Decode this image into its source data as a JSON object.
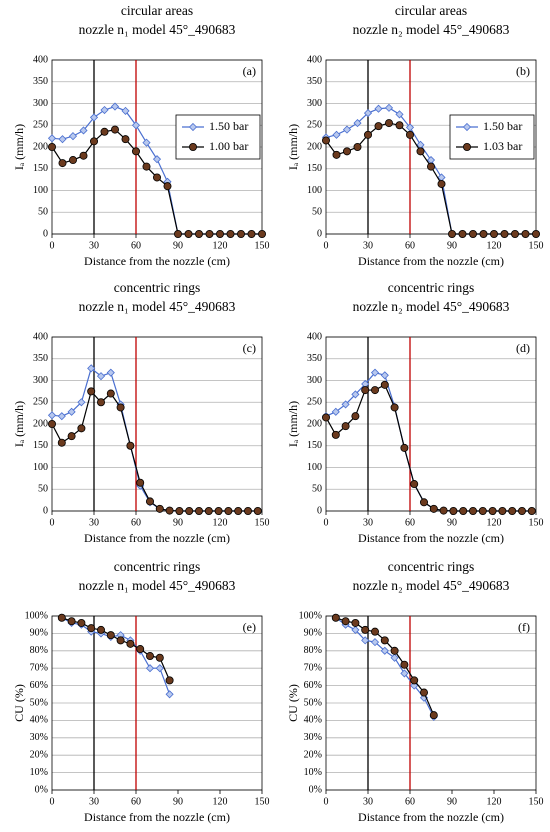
{
  "chart_data": [
    {
      "type": "line",
      "title": "circular areas",
      "subtitle": "nozzle n₁ model 45°_490683",
      "panel_label": "(a)",
      "xlabel": "Distance from the nozzle (cm)",
      "ylabel": "Iₐ (mm/h)",
      "x": [
        0,
        7.5,
        15,
        22.5,
        30,
        37.5,
        45,
        52.5,
        60,
        67.5,
        75,
        82.5,
        90,
        97.5,
        105,
        112.5,
        120,
        127.5,
        135,
        142.5,
        150
      ],
      "series": [
        {
          "name": "1.50 bar",
          "color": "#4a6fd0",
          "marker": "diamond",
          "marker_color": "#b8c8ee",
          "values": [
            220,
            218,
            225,
            238,
            268,
            285,
            293,
            283,
            250,
            210,
            172,
            120,
            0,
            0,
            0,
            0,
            0,
            0,
            0,
            0,
            0
          ]
        },
        {
          "name": "1.00 bar",
          "color": "#000000",
          "marker": "circle",
          "marker_color": "#6b3a1e",
          "values": [
            200,
            163,
            170,
            180,
            213,
            235,
            240,
            218,
            190,
            155,
            130,
            110,
            0,
            0,
            0,
            0,
            0,
            0,
            0,
            0,
            0
          ]
        }
      ],
      "xlim": [
        0,
        150
      ],
      "xticks": [
        0,
        30,
        60,
        90,
        120,
        150
      ],
      "ylim": [
        0,
        400
      ],
      "yticks": [
        0,
        50,
        100,
        150,
        200,
        250,
        300,
        350,
        400
      ],
      "grid": true,
      "legend": "center right",
      "vlines": [
        {
          "value": 30,
          "color": "#000000"
        },
        {
          "value": 60,
          "color": "#c00000"
        }
      ]
    },
    {
      "type": "line",
      "title": "circular areas",
      "subtitle": "nozzle n₂ model 45°_490683",
      "panel_label": "(b)",
      "xlabel": "Distance from the nozzle (cm)",
      "ylabel": "Iₐ (mm/h)",
      "x": [
        0,
        7.5,
        15,
        22.5,
        30,
        37.5,
        45,
        52.5,
        60,
        67.5,
        75,
        82.5,
        90,
        97.5,
        105,
        112.5,
        120,
        127.5,
        135,
        142.5,
        150
      ],
      "series": [
        {
          "name": "1.50 bar",
          "color": "#4a6fd0",
          "marker": "diamond",
          "marker_color": "#b8c8ee",
          "values": [
            222,
            228,
            240,
            255,
            278,
            288,
            290,
            275,
            245,
            205,
            170,
            130,
            0,
            0,
            0,
            0,
            0,
            0,
            0,
            0,
            0
          ]
        },
        {
          "name": "1.03 bar",
          "color": "#000000",
          "marker": "circle",
          "marker_color": "#6b3a1e",
          "values": [
            215,
            182,
            190,
            200,
            228,
            248,
            255,
            250,
            228,
            190,
            155,
            115,
            0,
            0,
            0,
            0,
            0,
            0,
            0,
            0,
            0
          ]
        }
      ],
      "xlim": [
        0,
        150
      ],
      "xticks": [
        0,
        30,
        60,
        90,
        120,
        150
      ],
      "ylim": [
        0,
        400
      ],
      "yticks": [
        0,
        50,
        100,
        150,
        200,
        250,
        300,
        350,
        400
      ],
      "grid": true,
      "legend": "center right",
      "vlines": [
        {
          "value": 30,
          "color": "#000000"
        },
        {
          "value": 60,
          "color": "#c00000"
        }
      ]
    },
    {
      "type": "line",
      "title": "concentric rings",
      "subtitle": "nozzle n₁ model 45°_490683",
      "panel_label": "(c)",
      "xlabel": "Distance from the nozzle (cm)",
      "ylabel": "Iₐ (mm/h)",
      "x": [
        0,
        7,
        14,
        21,
        28,
        35,
        42,
        49,
        56,
        63,
        70,
        77,
        84,
        91,
        98,
        105,
        112,
        119,
        126,
        133,
        140,
        147
      ],
      "series": [
        {
          "name": "1.50 bar",
          "color": "#4a6fd0",
          "marker": "diamond",
          "marker_color": "#b8c8ee",
          "values": [
            220,
            218,
            228,
            250,
            328,
            310,
            318,
            245,
            150,
            58,
            20,
            5,
            1,
            0,
            0,
            0,
            0,
            0,
            0,
            0,
            0,
            0
          ]
        },
        {
          "name": "1.00 bar",
          "color": "#000000",
          "marker": "circle",
          "marker_color": "#6b3a1e",
          "values": [
            200,
            157,
            172,
            190,
            275,
            250,
            270,
            238,
            150,
            65,
            22,
            5,
            1,
            0,
            0,
            0,
            0,
            0,
            0,
            0,
            0,
            0
          ]
        }
      ],
      "xlim": [
        0,
        150
      ],
      "xticks": [
        0,
        30,
        60,
        90,
        120,
        150
      ],
      "ylim": [
        0,
        400
      ],
      "yticks": [
        0,
        50,
        100,
        150,
        200,
        250,
        300,
        350,
        400
      ],
      "grid": true,
      "vlines": [
        {
          "value": 30,
          "color": "#000000"
        },
        {
          "value": 60,
          "color": "#c00000"
        }
      ]
    },
    {
      "type": "line",
      "title": "concentric rings",
      "subtitle": "nozzle n₂ model 45°_490683",
      "panel_label": "(d)",
      "xlabel": "Distance from the nozzle (cm)",
      "ylabel": "Iₐ (mm/h)",
      "x": [
        0,
        7,
        14,
        21,
        28,
        35,
        42,
        49,
        56,
        63,
        70,
        77,
        84,
        91,
        98,
        105,
        112,
        119,
        126,
        133,
        140,
        147
      ],
      "series": [
        {
          "name": "1.50 bar",
          "color": "#4a6fd0",
          "marker": "diamond",
          "marker_color": "#b8c8ee",
          "values": [
            218,
            228,
            245,
            268,
            292,
            318,
            312,
            240,
            145,
            62,
            20,
            5,
            1,
            0,
            0,
            0,
            0,
            0,
            0,
            0,
            0,
            0
          ]
        },
        {
          "name": "1.03 bar",
          "color": "#000000",
          "marker": "circle",
          "marker_color": "#6b3a1e",
          "values": [
            215,
            175,
            195,
            218,
            278,
            278,
            290,
            238,
            145,
            62,
            20,
            5,
            1,
            0,
            0,
            0,
            0,
            0,
            0,
            0,
            0,
            0
          ]
        }
      ],
      "xlim": [
        0,
        150
      ],
      "xticks": [
        0,
        30,
        60,
        90,
        120,
        150
      ],
      "ylim": [
        0,
        400
      ],
      "yticks": [
        0,
        50,
        100,
        150,
        200,
        250,
        300,
        350,
        400
      ],
      "grid": true,
      "vlines": [
        {
          "value": 30,
          "color": "#000000"
        },
        {
          "value": 60,
          "color": "#c00000"
        }
      ]
    },
    {
      "type": "line",
      "title": "concentric rings",
      "subtitle": "nozzle n₁ model 45°_490683",
      "panel_label": "(e)",
      "xlabel": "Distance from the nozzle (cm)",
      "ylabel": "CU (%)",
      "x": [
        7,
        14,
        21,
        28,
        35,
        42,
        49,
        56,
        63,
        70,
        77,
        84
      ],
      "series": [
        {
          "name": "1.50 bar",
          "color": "#4a6fd0",
          "marker": "diamond",
          "marker_color": "#b8c8ee",
          "values": [
            99,
            96,
            95,
            91,
            90,
            88,
            89,
            86,
            80,
            70,
            70,
            55
          ]
        },
        {
          "name": "1.00 bar",
          "color": "#000000",
          "marker": "circle",
          "marker_color": "#6b3a1e",
          "values": [
            99,
            97,
            96,
            93,
            92,
            89,
            86,
            84,
            81,
            77,
            76,
            63
          ]
        }
      ],
      "xlim": [
        0,
        150
      ],
      "xticks": [
        0,
        30,
        60,
        90,
        120,
        150
      ],
      "ylim": [
        0,
        100
      ],
      "yticks": [
        {
          "value": 0,
          "label": "0%"
        },
        {
          "value": 10,
          "label": "10%"
        },
        {
          "value": 20,
          "label": "20%"
        },
        {
          "value": 30,
          "label": "30%"
        },
        {
          "value": 40,
          "label": "40%"
        },
        {
          "value": 50,
          "label": "50%"
        },
        {
          "value": 60,
          "label": "60%"
        },
        {
          "value": 70,
          "label": "70%"
        },
        {
          "value": 80,
          "label": "80%"
        },
        {
          "value": 90,
          "label": "90%"
        },
        {
          "value": 100,
          "label": "100%"
        }
      ],
      "grid": true,
      "vlines": [
        {
          "value": 30,
          "color": "#000000"
        },
        {
          "value": 60,
          "color": "#c00000"
        }
      ]
    },
    {
      "type": "line",
      "title": "concentric rings",
      "subtitle": "nozzle n₂ model 45°_490683",
      "panel_label": "(f)",
      "xlabel": "Distance from the nozzle (cm)",
      "ylabel": "CU (%)",
      "x": [
        7,
        14,
        21,
        28,
        35,
        42,
        49,
        56,
        63,
        70,
        77
      ],
      "series": [
        {
          "name": "1.50 bar",
          "color": "#4a6fd0",
          "marker": "diamond",
          "marker_color": "#b8c8ee",
          "values": [
            99,
            95,
            92,
            86,
            85,
            80,
            76,
            67,
            60,
            53,
            42
          ]
        },
        {
          "name": "1.03 bar",
          "color": "#000000",
          "marker": "circle",
          "marker_color": "#6b3a1e",
          "values": [
            99,
            97,
            96,
            92,
            91,
            86,
            80,
            72,
            63,
            56,
            43
          ]
        }
      ],
      "xlim": [
        0,
        150
      ],
      "xticks": [
        0,
        30,
        60,
        90,
        120,
        150
      ],
      "ylim": [
        0,
        100
      ],
      "yticks": [
        {
          "value": 0,
          "label": "0%"
        },
        {
          "value": 10,
          "label": "10%"
        },
        {
          "value": 20,
          "label": "20%"
        },
        {
          "value": 30,
          "label": "30%"
        },
        {
          "value": 40,
          "label": "40%"
        },
        {
          "value": 50,
          "label": "50%"
        },
        {
          "value": 60,
          "label": "60%"
        },
        {
          "value": 70,
          "label": "70%"
        },
        {
          "value": 80,
          "label": "80%"
        },
        {
          "value": 90,
          "label": "90%"
        },
        {
          "value": 100,
          "label": "100%"
        }
      ],
      "grid": true,
      "vlines": [
        {
          "value": 30,
          "color": "#000000"
        },
        {
          "value": 60,
          "color": "#c00000"
        }
      ]
    }
  ]
}
